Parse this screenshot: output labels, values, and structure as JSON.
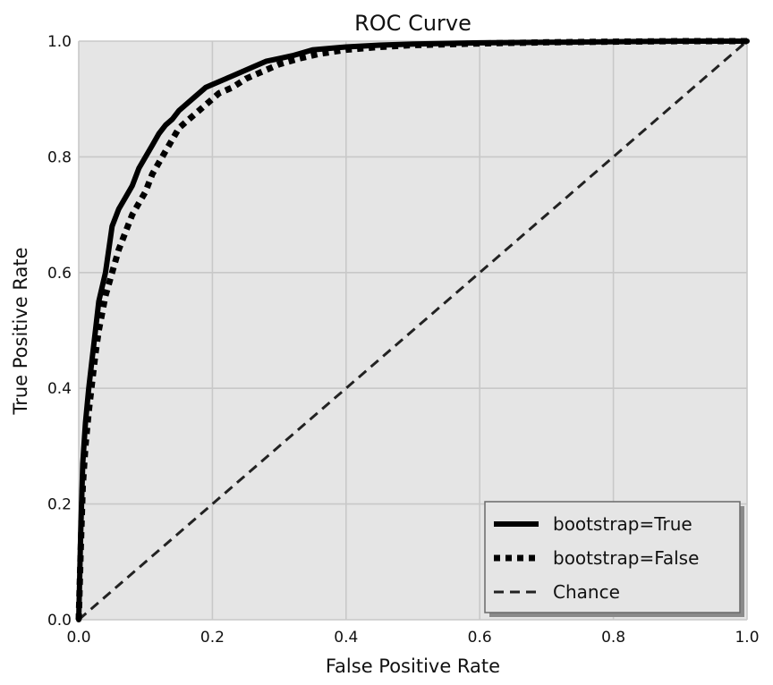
{
  "chart_data": {
    "type": "line",
    "title": "ROC Curve",
    "xlabel": "False Positive Rate",
    "ylabel": "True Positive Rate",
    "xlim": [
      0.0,
      1.0
    ],
    "ylim": [
      0.0,
      1.0
    ],
    "xticks": [
      "0.0",
      "0.2",
      "0.4",
      "0.6",
      "0.8",
      "1.0"
    ],
    "yticks": [
      "0.0",
      "0.2",
      "0.4",
      "0.6",
      "0.8",
      "1.0"
    ],
    "grid": true,
    "legend_position": "bottom-right",
    "series": [
      {
        "name": "bootstrap=True",
        "style": "solid",
        "color": "#000000",
        "x": [
          0.0,
          0.003,
          0.006,
          0.01,
          0.015,
          0.02,
          0.025,
          0.03,
          0.04,
          0.05,
          0.06,
          0.07,
          0.08,
          0.09,
          0.1,
          0.11,
          0.12,
          0.13,
          0.14,
          0.15,
          0.17,
          0.19,
          0.2,
          0.22,
          0.24,
          0.26,
          0.28,
          0.3,
          0.32,
          0.35,
          0.4,
          0.45,
          0.5,
          0.6,
          0.7,
          0.8,
          0.9,
          1.0
        ],
        "y": [
          0.0,
          0.15,
          0.27,
          0.34,
          0.4,
          0.45,
          0.5,
          0.55,
          0.6,
          0.68,
          0.71,
          0.73,
          0.75,
          0.78,
          0.8,
          0.82,
          0.84,
          0.855,
          0.865,
          0.88,
          0.9,
          0.92,
          0.925,
          0.935,
          0.945,
          0.955,
          0.965,
          0.97,
          0.975,
          0.985,
          0.99,
          0.993,
          0.995,
          0.997,
          0.998,
          0.999,
          1.0,
          1.0
        ]
      },
      {
        "name": "bootstrap=False",
        "style": "dotted",
        "color": "#000000",
        "x": [
          0.0,
          0.003,
          0.006,
          0.01,
          0.015,
          0.02,
          0.025,
          0.03,
          0.04,
          0.05,
          0.06,
          0.07,
          0.08,
          0.09,
          0.1,
          0.11,
          0.12,
          0.13,
          0.14,
          0.15,
          0.17,
          0.19,
          0.21,
          0.23,
          0.25,
          0.27,
          0.3,
          0.33,
          0.36,
          0.4,
          0.45,
          0.5,
          0.6,
          0.7,
          0.8,
          0.9,
          1.0
        ],
        "y": [
          0.0,
          0.12,
          0.23,
          0.3,
          0.36,
          0.41,
          0.46,
          0.5,
          0.56,
          0.6,
          0.64,
          0.67,
          0.7,
          0.72,
          0.74,
          0.77,
          0.79,
          0.81,
          0.83,
          0.85,
          0.87,
          0.89,
          0.91,
          0.92,
          0.935,
          0.945,
          0.96,
          0.97,
          0.978,
          0.985,
          0.99,
          0.993,
          0.996,
          0.998,
          0.999,
          1.0,
          1.0
        ]
      },
      {
        "name": "Chance",
        "style": "dashed",
        "color": "#222222",
        "x": [
          0.0,
          1.0
        ],
        "y": [
          0.0,
          1.0
        ]
      }
    ]
  }
}
